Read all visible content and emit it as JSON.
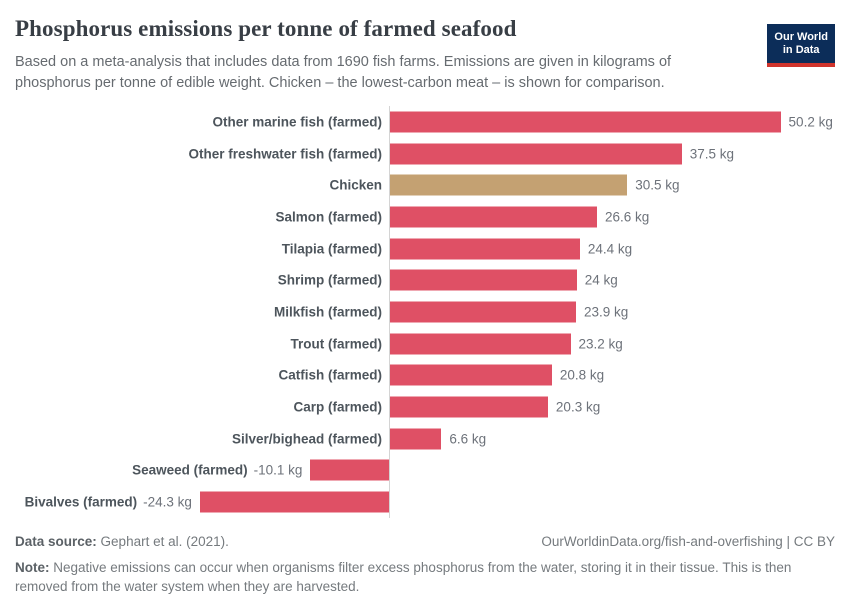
{
  "header": {
    "title": "Phosphorus emissions per tonne of farmed seafood",
    "subtitle": "Based on a meta-analysis that includes data from 1690 fish farms. Emissions are given in kilograms of phosphorus per tonne of edible weight. Chicken – the lowest-carbon meat – is shown for comparison.",
    "logo": {
      "line1": "Our World",
      "line2": "in Data"
    }
  },
  "chart_data": {
    "type": "bar",
    "orientation": "horizontal",
    "unit": "kg",
    "xlim": [
      -24.3,
      50.2
    ],
    "grid": false,
    "colors": {
      "default_bar": "#df5065",
      "highlight_bar": "#c4a172",
      "axis": "#d4d4d4"
    },
    "series": [
      {
        "label": "Other marine fish (farmed)",
        "value": 50.2,
        "value_label": "50.2 kg",
        "highlight": false
      },
      {
        "label": "Other freshwater fish (farmed)",
        "value": 37.5,
        "value_label": "37.5 kg",
        "highlight": false
      },
      {
        "label": "Chicken",
        "value": 30.5,
        "value_label": "30.5 kg",
        "highlight": true
      },
      {
        "label": "Salmon (farmed)",
        "value": 26.6,
        "value_label": "26.6 kg",
        "highlight": false
      },
      {
        "label": "Tilapia (farmed)",
        "value": 24.4,
        "value_label": "24.4 kg",
        "highlight": false
      },
      {
        "label": "Shrimp (farmed)",
        "value": 24,
        "value_label": "24 kg",
        "highlight": false
      },
      {
        "label": "Milkfish (farmed)",
        "value": 23.9,
        "value_label": "23.9 kg",
        "highlight": false
      },
      {
        "label": "Trout (farmed)",
        "value": 23.2,
        "value_label": "23.2 kg",
        "highlight": false
      },
      {
        "label": "Catfish (farmed)",
        "value": 20.8,
        "value_label": "20.8 kg",
        "highlight": false
      },
      {
        "label": "Carp (farmed)",
        "value": 20.3,
        "value_label": "20.3 kg",
        "highlight": false
      },
      {
        "label": "Silver/bighead (farmed)",
        "value": 6.6,
        "value_label": "6.6 kg",
        "highlight": false
      },
      {
        "label": "Seaweed (farmed)",
        "value": -10.1,
        "value_label": "-10.1 kg",
        "highlight": false
      },
      {
        "label": "Bivalves (farmed)",
        "value": -24.3,
        "value_label": "-24.3 kg",
        "highlight": false
      }
    ]
  },
  "footer": {
    "datasource_label": "Data source:",
    "datasource_value": "Gephart et al. (2021).",
    "url": "OurWorldinData.org/fish-and-overfishing | CC BY",
    "note_label": "Note:",
    "note_text": "Negative emissions can occur when organisms filter excess phosphorus from the water, storing it in their tissue. This is then removed from the water system when they are harvested."
  }
}
